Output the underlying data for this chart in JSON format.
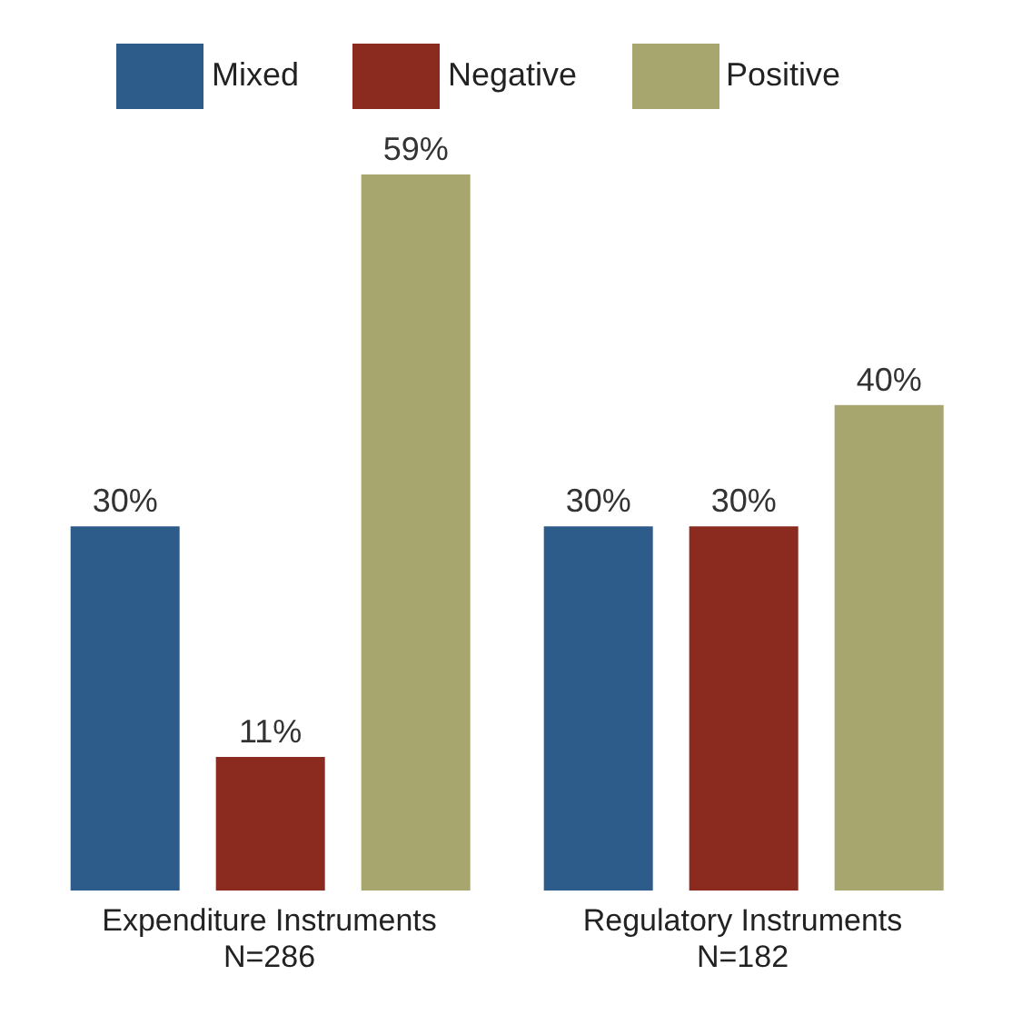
{
  "chart_data": {
    "type": "bar",
    "categories": [
      "Expenditure Instruments\nN=286",
      "Regulatory Instruments\nN=182"
    ],
    "series": [
      {
        "name": "Mixed",
        "color": "#2e5c8a",
        "values": [
          30,
          30
        ],
        "value_labels": [
          "30%",
          "30%"
        ]
      },
      {
        "name": "Negative",
        "color": "#8b2b1f",
        "values": [
          11,
          30
        ],
        "value_labels": [
          "11%",
          "30%"
        ]
      },
      {
        "name": "Positive",
        "color": "#a8a66f",
        "values": [
          59,
          40
        ],
        "value_labels": [
          "59%",
          "40%"
        ]
      }
    ],
    "legend": "top",
    "grid": false
  }
}
